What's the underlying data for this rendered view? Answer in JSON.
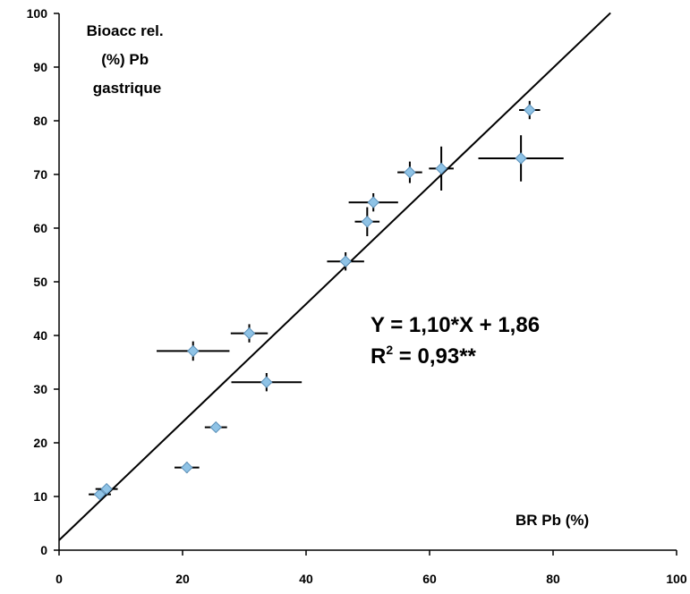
{
  "chart_data": {
    "type": "scatter",
    "title": "",
    "xlabel": "BR Pb (%)",
    "ylabel_lines": [
      "Bioacc rel.",
      "(%) Pb",
      "gastrique"
    ],
    "xlim": [
      0,
      100
    ],
    "ylim": [
      0,
      100
    ],
    "xticks": [
      "0",
      "20",
      "40",
      "60",
      "80",
      "100"
    ],
    "yticks": [
      "0",
      "10",
      "20",
      "30",
      "40",
      "50",
      "60",
      "70",
      "80",
      "90",
      "100"
    ],
    "grid": false,
    "legend": "none",
    "marker_color": "#8fc3e6",
    "marker_edge_color": "#5a8fb8",
    "line_color": "#000000",
    "points": [
      {
        "x": 6.6,
        "y": 10.4,
        "x_err": 1.8,
        "y_err": 0.8
      },
      {
        "x": 7.7,
        "y": 11.4,
        "x_err": 1.8,
        "y_err": 0.8
      },
      {
        "x": 20.7,
        "y": 15.4,
        "x_err": 2.0,
        "y_err": 1.0
      },
      {
        "x": 25.4,
        "y": 22.9,
        "x_err": 1.8,
        "y_err": 0.5
      },
      {
        "x": 33.6,
        "y": 31.3,
        "x_err": 5.7,
        "y_err": 1.7
      },
      {
        "x": 21.7,
        "y": 37.1,
        "x_err": 5.9,
        "y_err": 1.8
      },
      {
        "x": 30.8,
        "y": 40.4,
        "x_err": 3.0,
        "y_err": 1.7
      },
      {
        "x": 46.4,
        "y": 53.8,
        "x_err": 3.0,
        "y_err": 1.7
      },
      {
        "x": 49.9,
        "y": 61.2,
        "x_err": 2.0,
        "y_err": 2.7
      },
      {
        "x": 50.9,
        "y": 64.8,
        "x_err": 4.0,
        "y_err": 1.7
      },
      {
        "x": 56.8,
        "y": 70.4,
        "x_err": 2.0,
        "y_err": 2.0
      },
      {
        "x": 61.9,
        "y": 71.1,
        "x_err": 2.0,
        "y_err": 4.1
      },
      {
        "x": 74.8,
        "y": 73.0,
        "x_err": 6.9,
        "y_err": 4.3
      },
      {
        "x": 76.2,
        "y": 82.0,
        "x_err": 1.7,
        "y_err": 1.7
      }
    ],
    "regression": {
      "slope": 1.1,
      "intercept": 1.86,
      "x_range": [
        0,
        89.3
      ]
    },
    "annotations": {
      "equation": "Y = 1,10*X + 1,86",
      "r2_prefix": "R",
      "r2_sup": "2",
      "r2_value": " = 0,93**"
    }
  }
}
